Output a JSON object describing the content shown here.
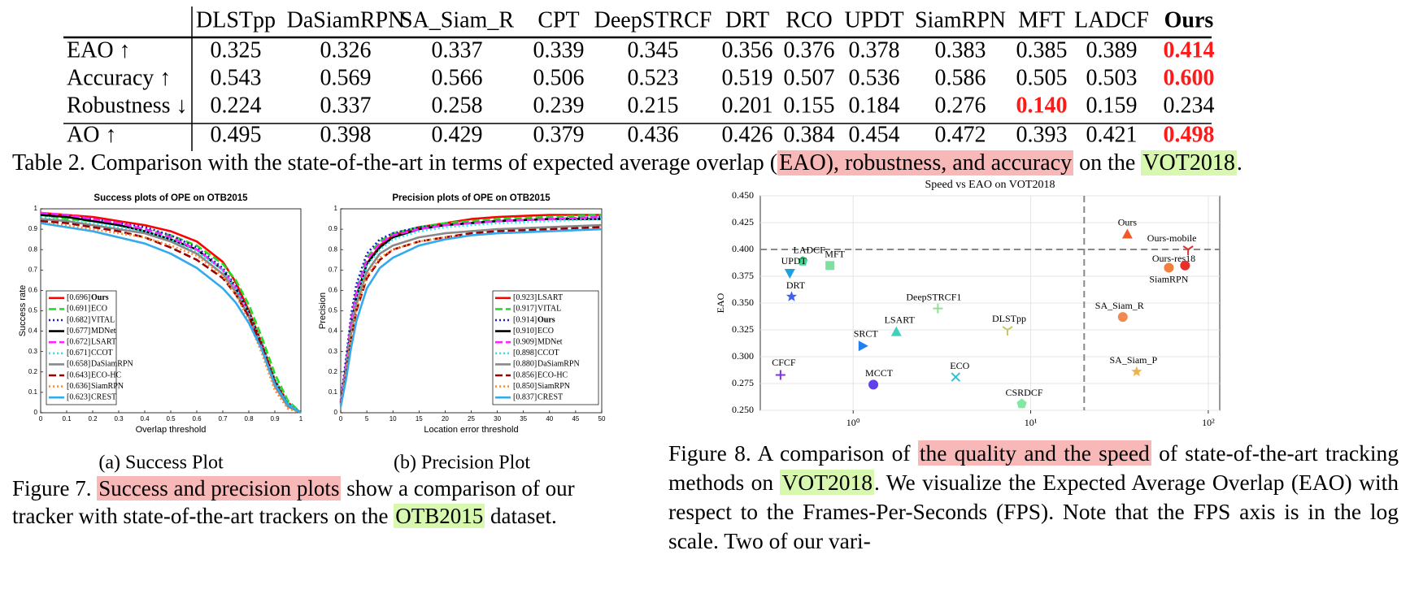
{
  "table": {
    "header": [
      "DLSTpp",
      "DaSiamRPN",
      "SA_Siam_R",
      "CPT",
      "DeepSTRCF",
      "DRT",
      "RCO",
      "UPDT",
      "SiamRPN",
      "MFT",
      "LADCF",
      "Ours"
    ],
    "header_bold": [
      11
    ],
    "rows": [
      {
        "label": "EAO ↑",
        "cells": [
          "0.325",
          "0.326",
          "0.337",
          "0.339",
          "0.345",
          "0.356",
          "0.376",
          "0.378",
          "0.383",
          "0.385",
          "0.389",
          "0.414"
        ]
      },
      {
        "label": "Accuracy ↑",
        "cells": [
          "0.543",
          "0.569",
          "0.566",
          "0.506",
          "0.523",
          "0.519",
          "0.507",
          "0.536",
          "0.586",
          "0.505",
          "0.503",
          "0.600"
        ]
      },
      {
        "label": "Robustness ↓",
        "cells": [
          "0.224",
          "0.337",
          "0.258",
          "0.239",
          "0.215",
          "0.201",
          "0.155",
          "0.184",
          "0.276",
          "0.140",
          "0.159",
          "0.234"
        ]
      },
      {
        "label": "AO ↑",
        "cells": [
          "0.495",
          "0.398",
          "0.429",
          "0.379",
          "0.436",
          "0.426",
          "0.384",
          "0.454",
          "0.472",
          "0.393",
          "0.421",
          "0.498"
        ]
      }
    ],
    "emphasis": [
      [
        0,
        11
      ],
      [
        1,
        11
      ],
      [
        2,
        9
      ],
      [
        3,
        11
      ]
    ],
    "emphasis_color": "#ff1a1a"
  },
  "table_caption": [
    {
      "text": "Table 2. Comparison with the state-of-the-art in terms of expected average overlap ("
    },
    {
      "text": "EAO), robustness, and accuracy",
      "highlight": "#f9b8b8"
    },
    {
      "text": " on the "
    },
    {
      "text": "VOT2018",
      "highlight": "#d8f8b0"
    },
    {
      "text": "."
    }
  ],
  "chart_data": [
    {
      "type": "line",
      "title": "Success plots of OPE on OTB2015",
      "xlabel": "Overlap threshold",
      "ylabel": "Success rate",
      "xlim": [
        0,
        1
      ],
      "ylim": [
        0,
        1
      ],
      "xticks": [
        0,
        0.1,
        0.2,
        0.3,
        0.4,
        0.5,
        0.6,
        0.7,
        0.8,
        0.9,
        1
      ],
      "yticks": [
        0,
        0.1,
        0.2,
        0.3,
        0.4,
        0.5,
        0.6,
        0.7,
        0.8,
        0.9,
        1
      ],
      "legend": "lower left",
      "x": [
        0,
        0.1,
        0.2,
        0.3,
        0.4,
        0.5,
        0.6,
        0.7,
        0.75,
        0.8,
        0.85,
        0.9,
        0.95,
        1
      ],
      "series": [
        {
          "name": "Ours",
          "score_label": "[0.696]",
          "bold": true,
          "color": "#ff0000",
          "dash": "solid",
          "values": [
            0.98,
            0.97,
            0.96,
            0.94,
            0.92,
            0.89,
            0.84,
            0.74,
            0.64,
            0.5,
            0.34,
            0.16,
            0.05,
            0
          ]
        },
        {
          "name": "ECO",
          "score_label": "[0.691]",
          "color": "#22dd22",
          "dash": "dashed",
          "values": [
            0.97,
            0.95,
            0.94,
            0.92,
            0.9,
            0.87,
            0.82,
            0.73,
            0.65,
            0.53,
            0.37,
            0.19,
            0.06,
            0
          ]
        },
        {
          "name": "VITAL",
          "score_label": "[0.682]",
          "color": "#1a1acc",
          "dash": "dotted",
          "values": [
            0.97,
            0.96,
            0.95,
            0.93,
            0.91,
            0.87,
            0.81,
            0.71,
            0.62,
            0.49,
            0.33,
            0.14,
            0.04,
            0
          ]
        },
        {
          "name": "MDNet",
          "score_label": "[0.677]",
          "color": "#000000",
          "dash": "solid",
          "values": [
            0.97,
            0.96,
            0.94,
            0.92,
            0.89,
            0.85,
            0.8,
            0.7,
            0.61,
            0.49,
            0.33,
            0.15,
            0.04,
            0
          ]
        },
        {
          "name": "LSART",
          "score_label": "[0.672]",
          "color": "#ff22ff",
          "dash": "dashed",
          "values": [
            0.98,
            0.97,
            0.95,
            0.93,
            0.9,
            0.86,
            0.8,
            0.7,
            0.61,
            0.48,
            0.32,
            0.14,
            0.04,
            0
          ]
        },
        {
          "name": "CCOT",
          "score_label": "[0.671]",
          "color": "#22eeee",
          "dash": "dotted",
          "values": [
            0.96,
            0.94,
            0.93,
            0.91,
            0.89,
            0.85,
            0.79,
            0.7,
            0.61,
            0.49,
            0.34,
            0.16,
            0.05,
            0
          ]
        },
        {
          "name": "DaSiamRPN",
          "score_label": "[0.658]",
          "color": "#888888",
          "dash": "solid",
          "values": [
            0.95,
            0.94,
            0.92,
            0.9,
            0.88,
            0.84,
            0.78,
            0.68,
            0.59,
            0.47,
            0.31,
            0.13,
            0.03,
            0
          ]
        },
        {
          "name": "ECO-HC",
          "score_label": "[0.643]",
          "color": "#990000",
          "dash": "dashed",
          "values": [
            0.94,
            0.93,
            0.91,
            0.89,
            0.86,
            0.81,
            0.75,
            0.66,
            0.58,
            0.47,
            0.33,
            0.15,
            0.04,
            0
          ]
        },
        {
          "name": "SiamRPN",
          "score_label": "[0.636]",
          "color": "#ff8c33",
          "dash": "dotted",
          "values": [
            0.93,
            0.92,
            0.9,
            0.88,
            0.86,
            0.82,
            0.77,
            0.67,
            0.58,
            0.45,
            0.29,
            0.11,
            0.02,
            0
          ]
        },
        {
          "name": "CREST",
          "score_label": "[0.623]",
          "color": "#33aaee",
          "dash": "solid",
          "values": [
            0.93,
            0.91,
            0.89,
            0.86,
            0.83,
            0.78,
            0.71,
            0.61,
            0.54,
            0.44,
            0.31,
            0.14,
            0.04,
            0
          ]
        }
      ]
    },
    {
      "type": "line",
      "title": "Precision plots of OPE on OTB2015",
      "xlabel": "Location error threshold",
      "ylabel": "Precision",
      "xlim": [
        0,
        50
      ],
      "ylim": [
        0,
        1
      ],
      "xticks": [
        0,
        5,
        10,
        15,
        20,
        25,
        30,
        35,
        40,
        45,
        50
      ],
      "yticks": [
        0,
        0.1,
        0.2,
        0.3,
        0.4,
        0.5,
        0.6,
        0.7,
        0.8,
        0.9,
        1
      ],
      "legend": "lower right",
      "x": [
        0,
        1,
        2,
        3,
        5,
        7.5,
        10,
        15,
        20,
        25,
        30,
        40,
        50
      ],
      "series": [
        {
          "name": "LSART",
          "score_label": "[0.923]",
          "color": "#ff0000",
          "dash": "solid",
          "values": [
            0.05,
            0.22,
            0.42,
            0.57,
            0.73,
            0.82,
            0.87,
            0.91,
            0.93,
            0.95,
            0.96,
            0.97,
            0.97
          ]
        },
        {
          "name": "VITAL",
          "score_label": "[0.917]",
          "color": "#22dd22",
          "dash": "dashed",
          "values": [
            0.05,
            0.24,
            0.45,
            0.6,
            0.76,
            0.84,
            0.88,
            0.91,
            0.93,
            0.94,
            0.95,
            0.96,
            0.97
          ]
        },
        {
          "name": "Ours",
          "score_label": "[0.914]",
          "bold": true,
          "color": "#1a1acc",
          "dash": "dotted",
          "values": [
            0.06,
            0.26,
            0.48,
            0.63,
            0.78,
            0.85,
            0.88,
            0.91,
            0.92,
            0.93,
            0.94,
            0.95,
            0.96
          ]
        },
        {
          "name": "ECO",
          "score_label": "[0.910]",
          "color": "#000000",
          "dash": "solid",
          "values": [
            0.05,
            0.22,
            0.42,
            0.57,
            0.73,
            0.81,
            0.86,
            0.9,
            0.92,
            0.93,
            0.94,
            0.95,
            0.95
          ]
        },
        {
          "name": "MDNet",
          "score_label": "[0.909]",
          "color": "#ff22ff",
          "dash": "dashed",
          "values": [
            0.05,
            0.23,
            0.44,
            0.59,
            0.75,
            0.83,
            0.87,
            0.9,
            0.92,
            0.93,
            0.94,
            0.95,
            0.96
          ]
        },
        {
          "name": "CCOT",
          "score_label": "[0.898]",
          "color": "#22eeee",
          "dash": "dotted",
          "values": [
            0.05,
            0.21,
            0.41,
            0.56,
            0.72,
            0.8,
            0.85,
            0.89,
            0.91,
            0.92,
            0.93,
            0.94,
            0.95
          ]
        },
        {
          "name": "DaSiamRPN",
          "score_label": "[0.880]",
          "color": "#888888",
          "dash": "solid",
          "values": [
            0.04,
            0.2,
            0.39,
            0.53,
            0.69,
            0.78,
            0.82,
            0.86,
            0.88,
            0.89,
            0.9,
            0.91,
            0.92
          ]
        },
        {
          "name": "ECO-HC",
          "score_label": "[0.856]",
          "color": "#990000",
          "dash": "dashed",
          "values": [
            0.04,
            0.18,
            0.36,
            0.5,
            0.66,
            0.75,
            0.8,
            0.84,
            0.86,
            0.88,
            0.89,
            0.9,
            0.91
          ]
        },
        {
          "name": "SiamRPN",
          "score_label": "[0.850]",
          "color": "#ff8c33",
          "dash": "dotted",
          "values": [
            0.04,
            0.19,
            0.37,
            0.51,
            0.67,
            0.76,
            0.8,
            0.84,
            0.86,
            0.87,
            0.88,
            0.89,
            0.9
          ]
        },
        {
          "name": "CREST",
          "score_label": "[0.837]",
          "color": "#33aaee",
          "dash": "solid",
          "values": [
            0.03,
            0.16,
            0.32,
            0.45,
            0.61,
            0.71,
            0.76,
            0.82,
            0.85,
            0.87,
            0.88,
            0.89,
            0.9
          ]
        }
      ]
    },
    {
      "type": "scatter",
      "title": "Speed vs EAO on VOT2018",
      "ylabel": "EAO",
      "xscale": "log",
      "grid": true,
      "xlim": [
        0.3,
        116
      ],
      "ylim": [
        0.25,
        0.45
      ],
      "xticks": [
        {
          "value": 1,
          "label": "10⁰"
        },
        {
          "value": 10,
          "label": "10¹"
        },
        {
          "value": 100,
          "label": "10²"
        }
      ],
      "yticks": [
        {
          "value": 0.25,
          "label": "0.250"
        },
        {
          "value": 0.275,
          "label": "0.275"
        },
        {
          "value": 0.3,
          "label": "0.300"
        },
        {
          "value": 0.325,
          "label": "0.325"
        },
        {
          "value": 0.35,
          "label": "0.350"
        },
        {
          "value": 0.375,
          "label": "0.375"
        },
        {
          "value": 0.4,
          "label": "0.400"
        },
        {
          "value": 0.425,
          "label": "0.425"
        },
        {
          "value": 0.45,
          "label": "0.450"
        }
      ],
      "hlines": [
        0.4
      ],
      "vlines": [
        20
      ],
      "points": [
        {
          "name": "Ours",
          "x": 35,
          "y": 0.414,
          "color": "#f05a28",
          "marker": "triangle-up"
        },
        {
          "name": "Ours-mobile",
          "x": 77,
          "y": 0.4,
          "color": "#e03030",
          "marker": "tri-down"
        },
        {
          "name": "Ours-res18",
          "x": 60,
          "y": 0.383,
          "color": "#f08040",
          "marker": "circle"
        },
        {
          "name": "SiamRPN",
          "x": 74,
          "y": 0.385,
          "color": "#e8302a",
          "marker": "circle"
        },
        {
          "name": "SA_Siam_R",
          "x": 33,
          "y": 0.337,
          "color": "#f08a50",
          "marker": "circle"
        },
        {
          "name": "SA_Siam_P",
          "x": 39.5,
          "y": 0.286,
          "color": "#f0b050",
          "marker": "star"
        },
        {
          "name": "LADCF",
          "x": 0.52,
          "y": 0.389,
          "color": "#40d890",
          "marker": "pentagon"
        },
        {
          "name": "MFT",
          "x": 0.74,
          "y": 0.385,
          "color": "#7de0a0",
          "marker": "square"
        },
        {
          "name": "UPDT",
          "x": 0.44,
          "y": 0.378,
          "color": "#1ea0e0",
          "marker": "triangle-down"
        },
        {
          "name": "DRT",
          "x": 0.45,
          "y": 0.356,
          "color": "#4060f0",
          "marker": "star"
        },
        {
          "name": "DeepSTRCF1",
          "x": 3,
          "y": 0.345,
          "color": "#90e090",
          "marker": "plus"
        },
        {
          "name": "LSART",
          "x": 1.75,
          "y": 0.323,
          "color": "#40d0c0",
          "marker": "triangle-up"
        },
        {
          "name": "SRCT",
          "x": 1.13,
          "y": 0.31,
          "color": "#2080f0",
          "marker": "triangle-right"
        },
        {
          "name": "DLSTpp",
          "x": 7.4,
          "y": 0.325,
          "color": "#c8c870",
          "marker": "tri-down"
        },
        {
          "name": "CFCF",
          "x": 0.39,
          "y": 0.283,
          "color": "#8030f0",
          "marker": "plus"
        },
        {
          "name": "MCCT",
          "x": 1.3,
          "y": 0.274,
          "color": "#6040e8",
          "marker": "circle"
        },
        {
          "name": "ECO",
          "x": 3.78,
          "y": 0.281,
          "color": "#30c0d0",
          "marker": "x"
        },
        {
          "name": "CSRDCF",
          "x": 8.9,
          "y": 0.256,
          "color": "#80e8a0",
          "marker": "pentagon"
        }
      ]
    }
  ],
  "figure7": {
    "subcaptions": [
      "(a) Success Plot",
      "(b) Precision Plot"
    ],
    "caption": [
      {
        "text": "Figure 7. "
      },
      {
        "text": "Success and precision plots",
        "highlight": "#f9b8b8"
      },
      {
        "text": " show a comparison of our tracker with state-of-the-art trackers on the "
      },
      {
        "text": "OTB2015",
        "highlight": "#d8f8b0"
      },
      {
        "text": " dataset."
      }
    ]
  },
  "figure8": {
    "caption": [
      {
        "text": "Figure 8. A comparison of "
      },
      {
        "text": "the quality and the speed",
        "highlight": "#f9b8b8"
      },
      {
        "text": " of state-of-the-art tracking methods on "
      },
      {
        "text": "VOT2018",
        "highlight": "#d8f8b0"
      },
      {
        "text": ". We visualize the Expected Average Overlap (EAO) with respect to the Frames-Per-Seconds (FPS). Note that the FPS axis is in the log scale. Two of our vari-"
      }
    ]
  }
}
